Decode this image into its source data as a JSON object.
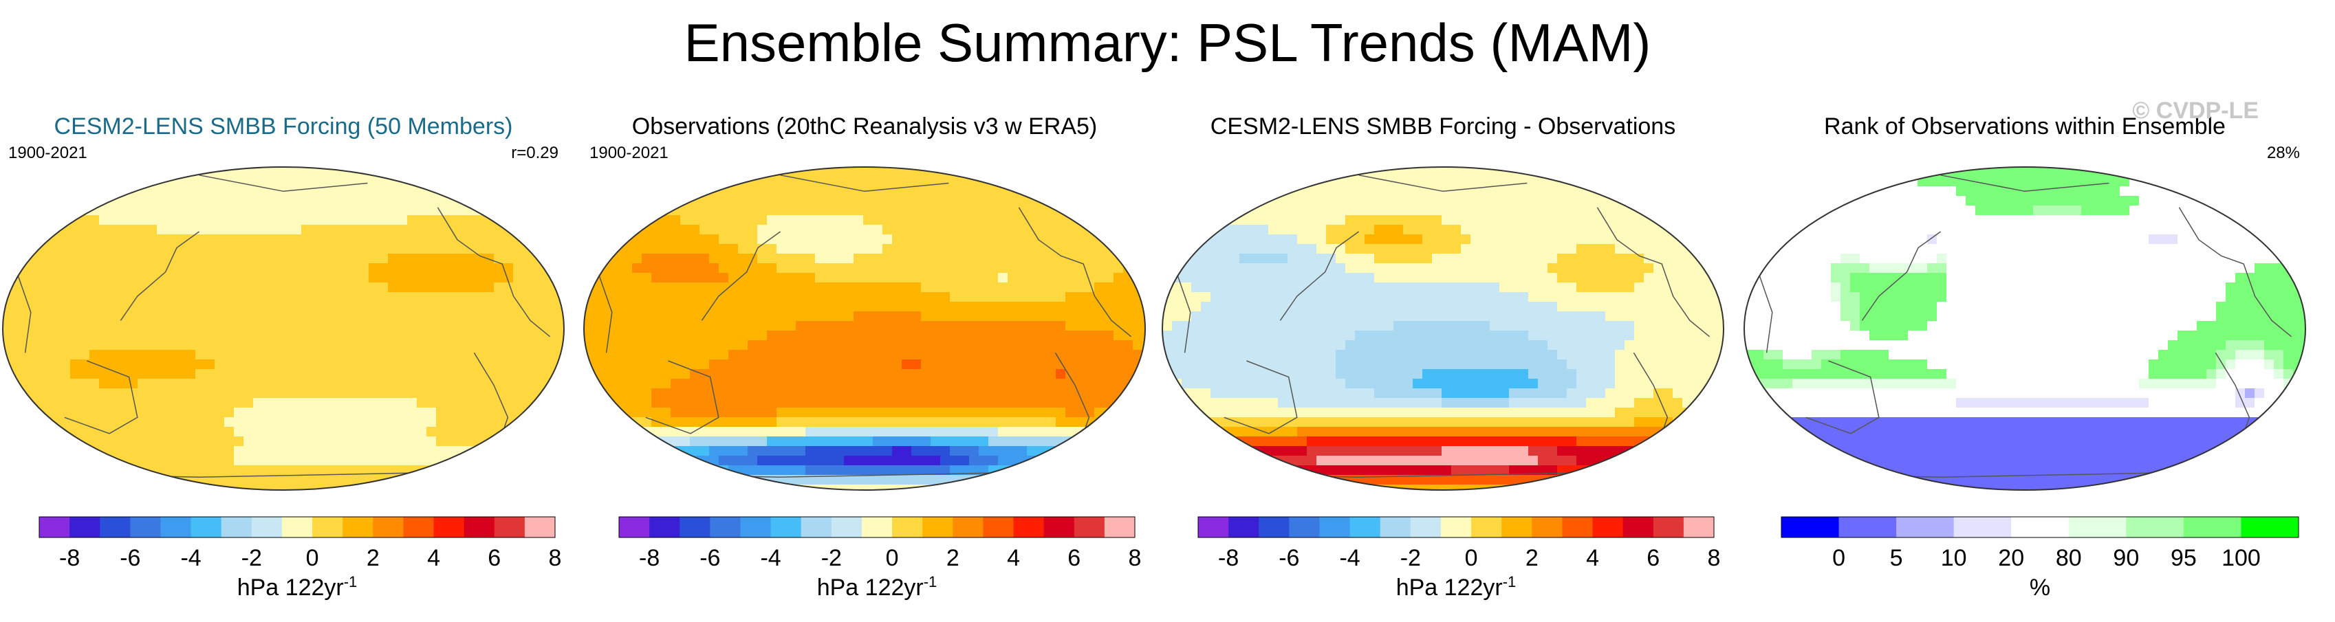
{
  "title": "Ensemble Summary: PSL Trends (MAM)",
  "watermark": "© CVDP-LE",
  "colors": {
    "trend_palette": [
      "#8a2be2",
      "#3b1fd6",
      "#2a4fd9",
      "#3a78e2",
      "#3e9cf0",
      "#45bdf6",
      "#a9d8f2",
      "#c8e6f4",
      "#fffbbd",
      "#ffd840",
      "#ffb400",
      "#ff8c00",
      "#ff5a00",
      "#ff1e00",
      "#d7001c",
      "#e03636",
      "#ffb4b4"
    ],
    "rank_palette": [
      "#0000ff",
      "#6b6bff",
      "#b0b0ff",
      "#e3e3ff",
      "#ffffff",
      "#e3ffe3",
      "#b0ffb0",
      "#7bff7b",
      "#00ff00"
    ],
    "map_outline": "#333333",
    "coastline": "#555555"
  },
  "chart_data": [
    {
      "type": "heatmap",
      "title": "CESM2-LENS SMBB Forcing (50 Members)",
      "title_color": "#1a6a8a",
      "period": "1900-2021",
      "annotation": "r=0.29",
      "colorbar": {
        "tick_labels": [
          "-8",
          "-6",
          "-4",
          "-2",
          "0",
          "2",
          "4",
          "6",
          "8"
        ],
        "unit": "hPa 122yr",
        "unit_exponent": "-1"
      },
      "pattern": "ensemble"
    },
    {
      "type": "heatmap",
      "title": "Observations (20thC Reanalysis v3 w ERA5)",
      "title_color": "#000000",
      "period": "1900-2021",
      "annotation": "",
      "colorbar": {
        "tick_labels": [
          "-8",
          "-6",
          "-4",
          "-2",
          "0",
          "2",
          "4",
          "6",
          "8"
        ],
        "unit": "hPa 122yr",
        "unit_exponent": "-1"
      },
      "pattern": "observations"
    },
    {
      "type": "heatmap",
      "title": "CESM2-LENS SMBB Forcing - Observations",
      "title_color": "#000000",
      "period": "",
      "annotation": "",
      "colorbar": {
        "tick_labels": [
          "-8",
          "-6",
          "-4",
          "-2",
          "0",
          "2",
          "4",
          "6",
          "8"
        ],
        "unit": "hPa 122yr",
        "unit_exponent": "-1"
      },
      "pattern": "difference"
    },
    {
      "type": "heatmap",
      "title": "Rank of Observations within Ensemble",
      "title_color": "#000000",
      "period": "",
      "annotation": "28%",
      "colorbar": {
        "tick_labels": [
          "0",
          "5",
          "10",
          "20",
          "80",
          "90",
          "95",
          "100"
        ],
        "tick_positions": [
          0,
          5,
          10,
          20,
          80,
          90,
          95,
          100
        ],
        "unit": "%",
        "unit_exponent": ""
      },
      "pattern": "rank"
    }
  ]
}
